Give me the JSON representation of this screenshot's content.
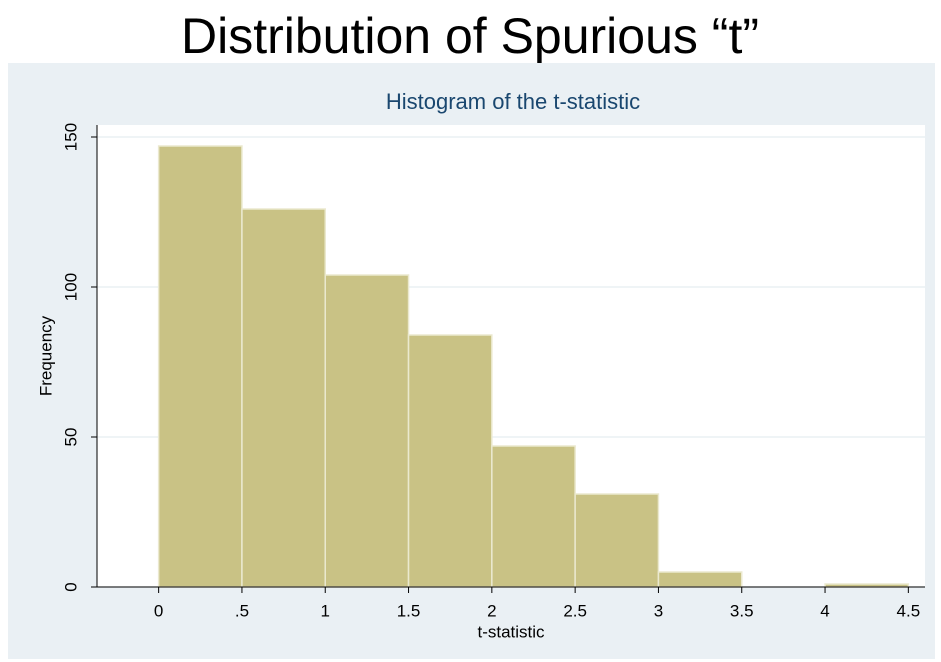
{
  "slide_title": "Distribution of Spurious “t”",
  "chart_data": {
    "type": "histogram",
    "title": "Histogram of the t-statistic",
    "x_label": "t-statistic",
    "y_label": "Frequency",
    "bins": [
      0,
      0.5,
      1,
      1.5,
      2,
      2.5,
      3,
      3.5,
      4,
      4.5
    ],
    "values": [
      147,
      126,
      104,
      84,
      47,
      31,
      5,
      0,
      1
    ],
    "color": "#c9c285",
    "xlim": [
      -0.37,
      4.6
    ],
    "ylim": [
      0,
      154
    ],
    "xticks": [
      0,
      {
        "value": 0.5,
        "label": ".5"
      },
      1,
      1.5,
      2,
      2.5,
      3,
      3.5,
      4,
      4.5
    ],
    "yticks": [
      0,
      50,
      100,
      150
    ],
    "grid": true
  }
}
